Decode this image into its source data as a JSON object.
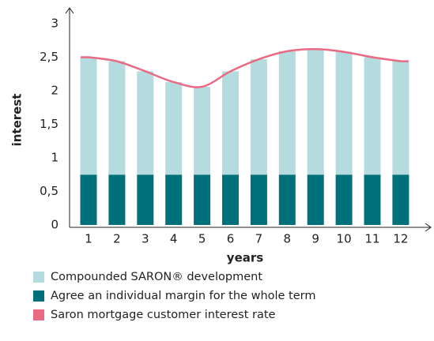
{
  "chart_data": {
    "type": "bar",
    "stacked": true,
    "x_label": "years",
    "y_label": "interest",
    "categories": [
      "1",
      "2",
      "3",
      "4",
      "5",
      "6",
      "7",
      "8",
      "9",
      "10",
      "11",
      "12"
    ],
    "series": [
      {
        "name": "Compounded SARON® development",
        "color": "#b4dcdf",
        "values": [
          1.75,
          1.69,
          1.54,
          1.38,
          1.31,
          1.54,
          1.72,
          1.84,
          1.87,
          1.83,
          1.75,
          1.69
        ]
      },
      {
        "name": "Agree an individual margin for the whole term",
        "color": "#00717a",
        "values": [
          0.75,
          0.75,
          0.75,
          0.75,
          0.75,
          0.75,
          0.75,
          0.75,
          0.75,
          0.75,
          0.75,
          0.75
        ]
      },
      {
        "name": "Saron mortgage customer interest rate",
        "color": "#ea6a84",
        "type": "line",
        "values": [
          2.5,
          2.44,
          2.29,
          2.13,
          2.06,
          2.29,
          2.47,
          2.59,
          2.62,
          2.58,
          2.5,
          2.44
        ]
      }
    ],
    "ylim": [
      0,
      3
    ],
    "yticks": [
      0,
      {
        "value": 0.5,
        "label": "0,5"
      },
      1,
      {
        "value": 1.5,
        "label": "1,5"
      },
      2,
      {
        "value": 2.5,
        "label": "2,5"
      },
      3
    ],
    "grid": false
  }
}
